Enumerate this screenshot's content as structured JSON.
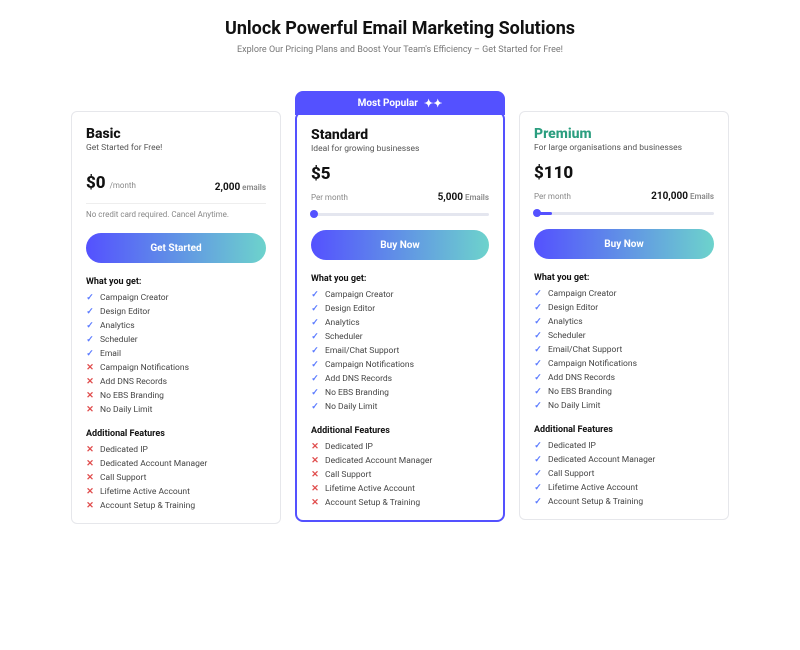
{
  "header": {
    "title": "Unlock Powerful Email Marketing Solutions",
    "subtitle": "Explore Our Pricing Plans and Boost Your Team's Efficiency – Get Started for Free!"
  },
  "colors": {
    "accent": "#5451ff",
    "gradient_start": "#5451ff",
    "gradient_end": "#6dd3cc",
    "premium_title": "#2b9e7f",
    "check": "#5b7bff",
    "cross": "#e04c4c",
    "card_border": "#e6e7eb",
    "text": "#111111",
    "muted": "#888888",
    "bg": "#ffffff"
  },
  "labels": {
    "what_you_get": "What you get:",
    "additional": "Additional Features",
    "most_popular": "Most Popular"
  },
  "plans": [
    {
      "id": "basic",
      "name": "Basic",
      "tagline": "Get Started for Free!",
      "price": "$0",
      "per": "/month",
      "per_style": "inline",
      "emails_value": "2,000",
      "emails_unit": "emails",
      "note": "No credit card required. Cancel Anytime.",
      "has_slider": false,
      "cta": "Get Started",
      "highlight": false,
      "features": [
        {
          "label": "Campaign Creator",
          "ok": true
        },
        {
          "label": "Design Editor",
          "ok": true
        },
        {
          "label": "Analytics",
          "ok": true
        },
        {
          "label": "Scheduler",
          "ok": true
        },
        {
          "label": "Email",
          "ok": true
        },
        {
          "label": "Campaign Notifications",
          "ok": false
        },
        {
          "label": "Add DNS Records",
          "ok": false
        },
        {
          "label": "No EBS Branding",
          "ok": false
        },
        {
          "label": "No Daily Limit",
          "ok": false
        }
      ],
      "additional": [
        {
          "label": "Dedicated IP",
          "ok": false
        },
        {
          "label": "Dedicated Account Manager",
          "ok": false
        },
        {
          "label": "Call Support",
          "ok": false
        },
        {
          "label": "Lifetime Active Account",
          "ok": false
        },
        {
          "label": "Account Setup & Training",
          "ok": false
        }
      ]
    },
    {
      "id": "standard",
      "name": "Standard",
      "tagline": "Ideal for growing businesses",
      "price": "$5",
      "per": "Per month",
      "per_style": "block",
      "emails_value": "5,000",
      "emails_unit": "Emails",
      "has_slider": true,
      "slider_fill_pct": 3,
      "cta": "Buy Now",
      "highlight": true,
      "features": [
        {
          "label": "Campaign Creator",
          "ok": true
        },
        {
          "label": "Design Editor",
          "ok": true
        },
        {
          "label": "Analytics",
          "ok": true
        },
        {
          "label": "Scheduler",
          "ok": true
        },
        {
          "label": "Email/Chat Support",
          "ok": true
        },
        {
          "label": "Campaign Notifications",
          "ok": true
        },
        {
          "label": "Add DNS Records",
          "ok": true
        },
        {
          "label": "No EBS Branding",
          "ok": true
        },
        {
          "label": "No Daily Limit",
          "ok": true
        }
      ],
      "additional": [
        {
          "label": "Dedicated IP",
          "ok": false
        },
        {
          "label": "Dedicated Account Manager",
          "ok": false
        },
        {
          "label": "Call Support",
          "ok": false
        },
        {
          "label": "Lifetime Active Account",
          "ok": false
        },
        {
          "label": "Account Setup & Training",
          "ok": false
        }
      ]
    },
    {
      "id": "premium",
      "name": "Premium",
      "tagline": "For large organisations and businesses",
      "price": "$110",
      "per": "Per month",
      "per_style": "block",
      "emails_value": "210,000",
      "emails_unit": "Emails",
      "has_slider": true,
      "slider_fill_pct": 10,
      "cta": "Buy Now",
      "highlight": false,
      "features": [
        {
          "label": "Campaign Creator",
          "ok": true
        },
        {
          "label": "Design Editor",
          "ok": true
        },
        {
          "label": "Analytics",
          "ok": true
        },
        {
          "label": "Scheduler",
          "ok": true
        },
        {
          "label": "Email/Chat Support",
          "ok": true
        },
        {
          "label": "Campaign Notifications",
          "ok": true
        },
        {
          "label": "Add DNS Records",
          "ok": true
        },
        {
          "label": "No EBS Branding",
          "ok": true
        },
        {
          "label": "No Daily Limit",
          "ok": true
        }
      ],
      "additional": [
        {
          "label": "Dedicated IP",
          "ok": true
        },
        {
          "label": "Dedicated Account Manager",
          "ok": true
        },
        {
          "label": "Call Support",
          "ok": true
        },
        {
          "label": "Lifetime Active Account",
          "ok": true
        },
        {
          "label": "Account Setup & Training",
          "ok": true
        }
      ]
    }
  ]
}
